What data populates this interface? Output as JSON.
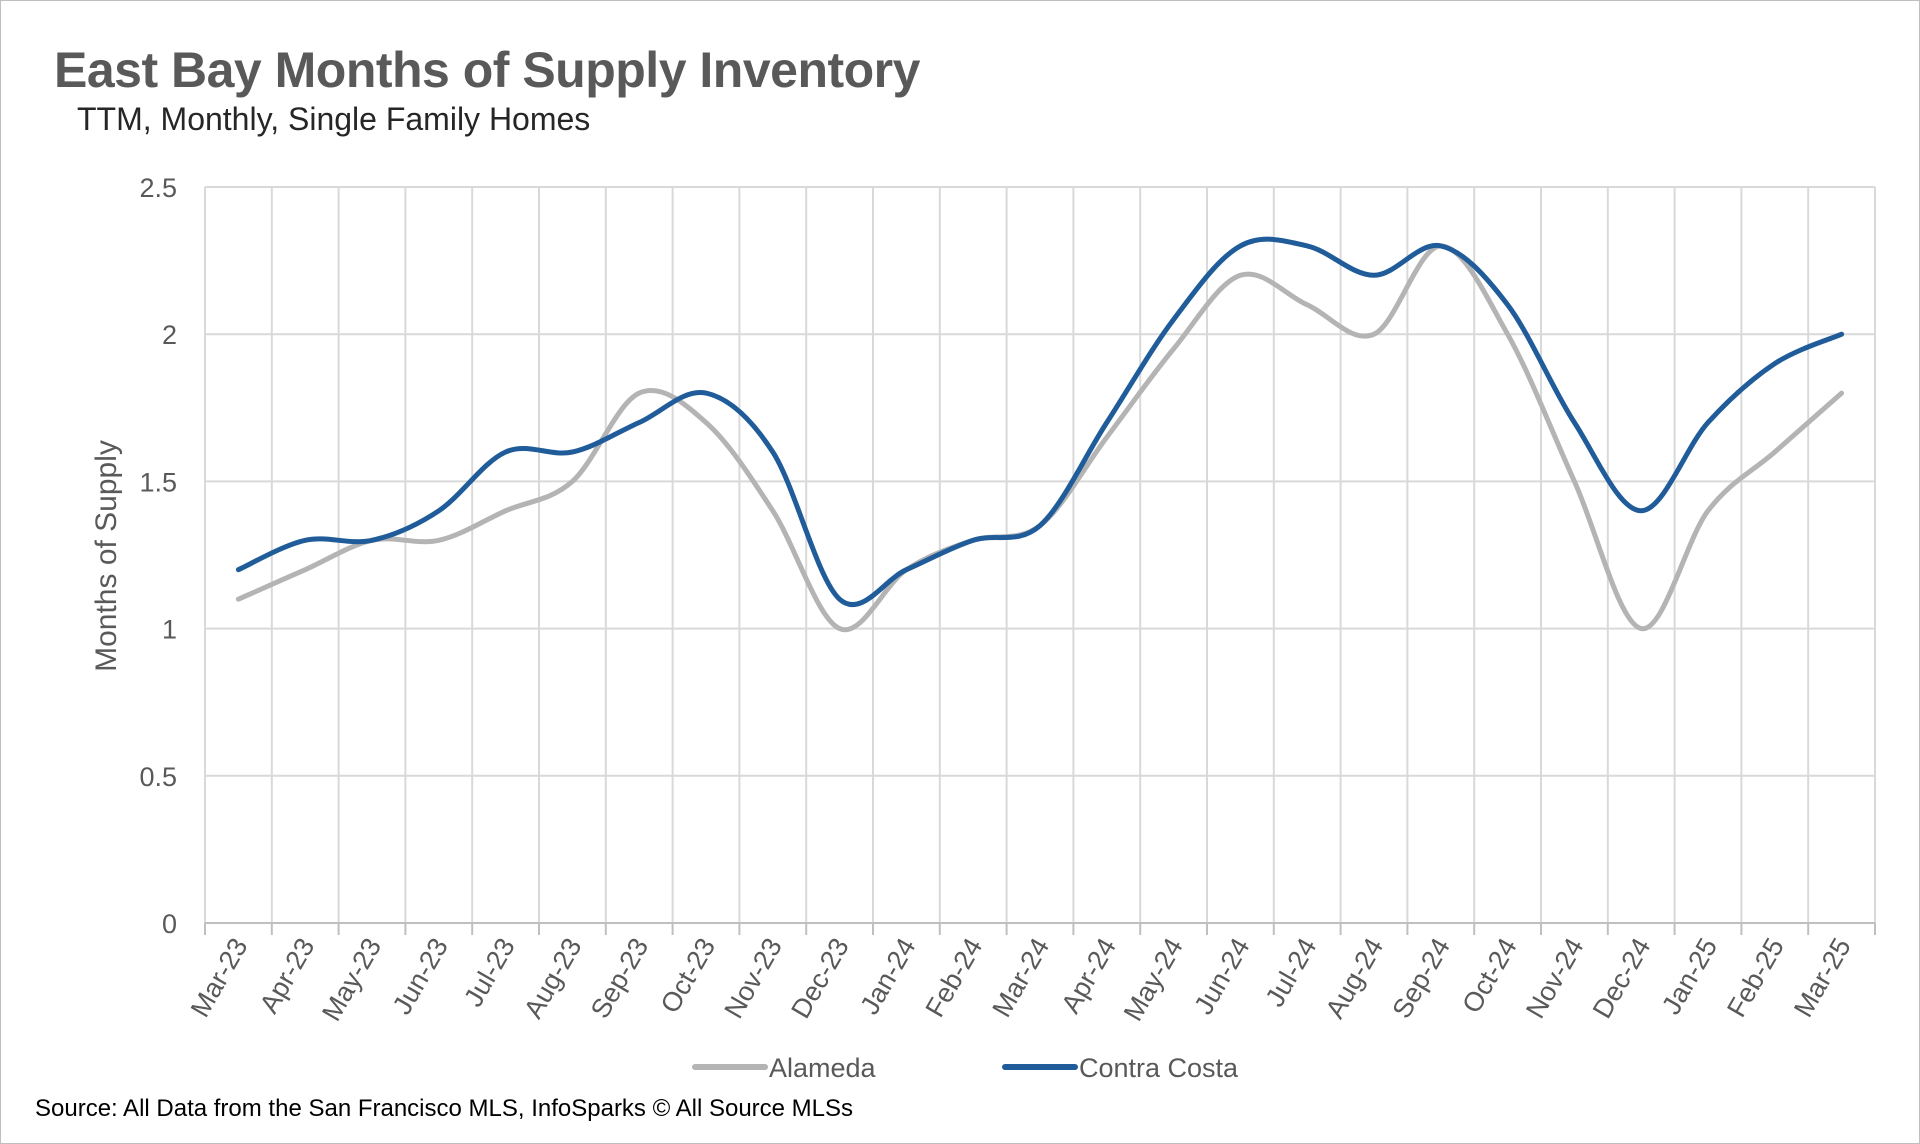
{
  "chart_data": {
    "type": "line",
    "title": "East Bay Months of Supply Inventory",
    "subtitle": "TTM, Monthly, Single Family Homes",
    "ylabel": "Months of Supply",
    "xlabel": "",
    "ylim": [
      0,
      2.5
    ],
    "yticks": [
      "0",
      "0.5",
      "1",
      "1.5",
      "2",
      "2.5"
    ],
    "grid": true,
    "legend": "bottom",
    "smooth": true,
    "categories": [
      "Mar-23",
      "Apr-23",
      "May-23",
      "Jun-23",
      "Jul-23",
      "Aug-23",
      "Sep-23",
      "Oct-23",
      "Nov-23",
      "Dec-23",
      "Jan-24",
      "Feb-24",
      "Mar-24",
      "Apr-24",
      "May-24",
      "Jun-24",
      "Jul-24",
      "Aug-24",
      "Sep-24",
      "Oct-24",
      "Nov-24",
      "Dec-24",
      "Jan-25",
      "Feb-25",
      "Mar-25"
    ],
    "series": [
      {
        "name": "Alameda",
        "color": "#b4b4b4",
        "values": [
          1.1,
          1.2,
          1.3,
          1.3,
          1.4,
          1.5,
          1.8,
          1.7,
          1.4,
          1.0,
          1.2,
          1.3,
          1.35,
          1.65,
          1.95,
          2.2,
          2.1,
          2.0,
          2.3,
          2.0,
          1.5,
          1.0,
          1.4,
          1.6,
          1.8
        ]
      },
      {
        "name": "Contra Costa",
        "color": "#1f5c99",
        "values": [
          1.2,
          1.3,
          1.3,
          1.4,
          1.6,
          1.6,
          1.7,
          1.8,
          1.6,
          1.1,
          1.2,
          1.3,
          1.35,
          1.7,
          2.05,
          2.3,
          2.3,
          2.2,
          2.3,
          2.1,
          1.7,
          1.4,
          1.7,
          1.9,
          2.0
        ]
      }
    ]
  },
  "source": "Source: All Data from the San Francisco MLS, InfoSparks © All Source MLSs"
}
